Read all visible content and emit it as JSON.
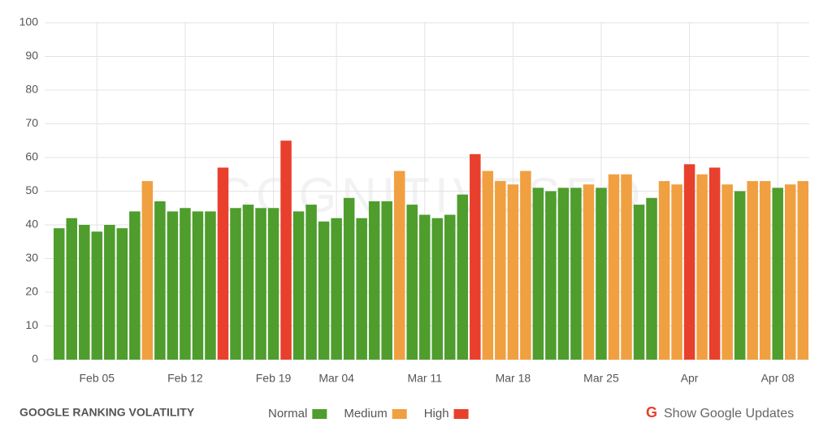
{
  "chart_data": {
    "type": "bar",
    "title": "GOOGLE RANKING VOLATILITY",
    "watermark": "COGNITIVESEO",
    "button": "Show Google Updates",
    "categories": [
      null,
      null,
      null,
      "Feb 05",
      null,
      null,
      null,
      null,
      null,
      null,
      "Feb 12",
      null,
      null,
      null,
      null,
      null,
      null,
      "Feb 19",
      null,
      null,
      null,
      null,
      "Mar 04",
      null,
      null,
      null,
      null,
      null,
      null,
      "Mar 11",
      null,
      null,
      null,
      null,
      null,
      null,
      "Mar 18",
      null,
      null,
      null,
      null,
      null,
      null,
      "Mar 25",
      null,
      null,
      null,
      null,
      null,
      null,
      "Apr",
      null,
      null,
      null,
      null,
      null,
      null,
      "Apr 08",
      null,
      null
    ],
    "values": [
      39,
      42,
      40,
      38,
      40,
      39,
      44,
      53,
      47,
      44,
      45,
      44,
      44,
      57,
      45,
      46,
      45,
      45,
      65,
      44,
      46,
      41,
      42,
      48,
      42,
      47,
      47,
      56,
      46,
      43,
      42,
      43,
      49,
      61,
      56,
      53,
      52,
      56,
      51,
      50,
      51,
      51,
      52,
      51,
      55,
      55,
      46,
      48,
      53,
      52,
      58,
      55,
      57,
      52,
      50,
      53,
      53,
      51,
      52,
      53
    ],
    "bar_colors": [
      "#4e9d2d",
      "#4e9d2d",
      "#4e9d2d",
      "#4e9d2d",
      "#4e9d2d",
      "#4e9d2d",
      "#4e9d2d",
      "#f0a040",
      "#4e9d2d",
      "#4e9d2d",
      "#4e9d2d",
      "#4e9d2d",
      "#4e9d2d",
      "#e8402c",
      "#4e9d2d",
      "#4e9d2d",
      "#4e9d2d",
      "#4e9d2d",
      "#e8402c",
      "#4e9d2d",
      "#4e9d2d",
      "#4e9d2d",
      "#4e9d2d",
      "#4e9d2d",
      "#4e9d2d",
      "#4e9d2d",
      "#4e9d2d",
      "#f0a040",
      "#4e9d2d",
      "#4e9d2d",
      "#4e9d2d",
      "#4e9d2d",
      "#4e9d2d",
      "#e8402c",
      "#f0a040",
      "#f0a040",
      "#f0a040",
      "#f0a040",
      "#4e9d2d",
      "#4e9d2d",
      "#4e9d2d",
      "#4e9d2d",
      "#f0a040",
      "#4e9d2d",
      "#f0a040",
      "#f0a040",
      "#4e9d2d",
      "#4e9d2d",
      "#f0a040",
      "#f0a040",
      "#e8402c",
      "#f0a040",
      "#e8402c",
      "#f0a040",
      "#4e9d2d",
      "#f0a040",
      "#f0a040",
      "#4e9d2d",
      "#f0a040",
      "#f0a040"
    ],
    "legend": [
      {
        "name": "Normal",
        "color": "#4e9d2d"
      },
      {
        "name": "Medium",
        "color": "#f0a040"
      },
      {
        "name": "High",
        "color": "#e8402c"
      }
    ],
    "ylim": [
      0,
      100
    ],
    "yticks": [
      0,
      10,
      20,
      30,
      40,
      50,
      60,
      70,
      80,
      90,
      100
    ],
    "grid": true
  }
}
